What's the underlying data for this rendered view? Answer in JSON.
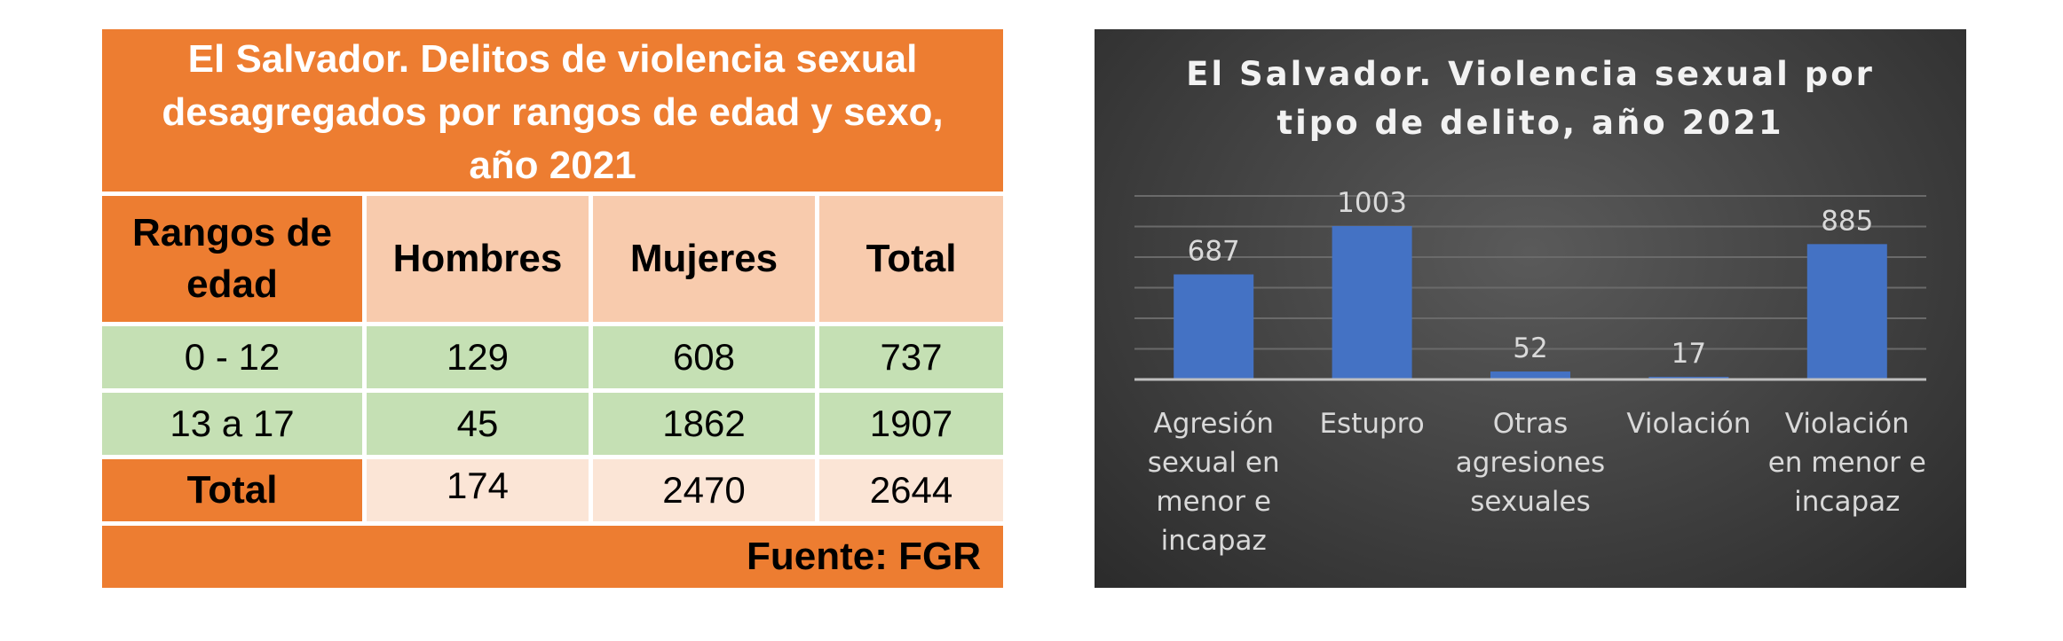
{
  "table": {
    "title_lines": [
      "El Salvador. Delitos de violencia sexual",
      "desagregados por rangos de edad y sexo,",
      "año 2021"
    ],
    "header": {
      "rangos_lines": [
        "Rangos de",
        "edad"
      ],
      "hombres": "Hombres",
      "mujeres": "Mujeres",
      "total": "Total"
    },
    "rows": [
      {
        "rango": "0 - 12",
        "hombres": "129",
        "mujeres": "608",
        "total": "737"
      },
      {
        "rango": "13 a 17",
        "hombres": "45",
        "mujeres": "1862",
        "total": "1907"
      },
      {
        "rango": "Total",
        "hombres": "174",
        "mujeres": "2470",
        "total": "2644"
      }
    ],
    "source": "Fuente: FGR",
    "colors": {
      "orange": "#ed7d31",
      "peach": "#f8cbad",
      "green": "#c5e0b4",
      "light_peach": "#fbe5d6"
    }
  },
  "chart_data": {
    "type": "bar",
    "title_lines": [
      "El Salvador. Violencia sexual por",
      "tipo de delito, año 2021"
    ],
    "categories": [
      [
        "Agresión",
        "sexual en",
        "menor e",
        "incapaz"
      ],
      [
        "Estupro"
      ],
      [
        "Otras",
        "agresiones",
        "sexuales"
      ],
      [
        "Violación"
      ],
      [
        "Violación",
        "en menor e",
        "incapaz"
      ]
    ],
    "values": [
      687,
      1003,
      52,
      17,
      885
    ],
    "data_labels": [
      "687",
      "1003",
      "52",
      "17",
      "885"
    ],
    "ylim": [
      0,
      1200
    ],
    "grid": true,
    "legend": "none",
    "bar_color": "#4472c4"
  }
}
